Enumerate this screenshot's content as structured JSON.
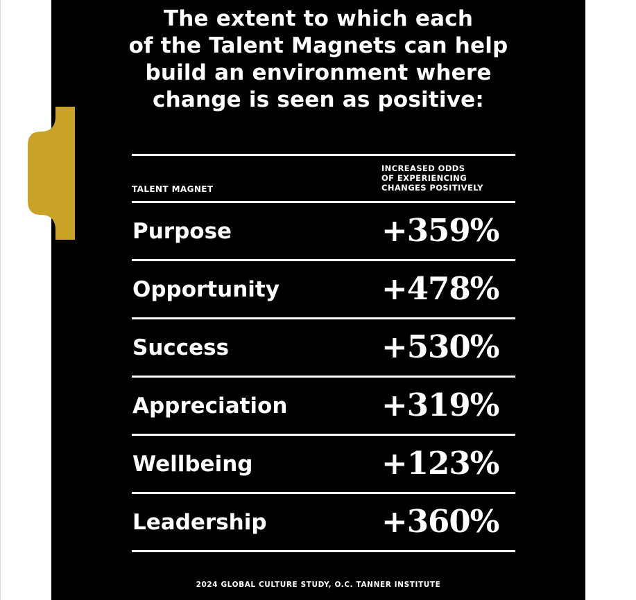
{
  "title_lines": [
    "The extent to which each",
    "of the Talent Magnets can help",
    "build an environment where",
    "change is seen as positive:"
  ],
  "table": {
    "column_headers": {
      "magnet": "TALENT MAGNET",
      "odds_lines": [
        "INCREASED ODDS",
        "OF EXPERIENCING",
        "CHANGES POSITIVELY"
      ]
    },
    "rows": [
      {
        "magnet": "Purpose",
        "odds": "+359%"
      },
      {
        "magnet": "Opportunity",
        "odds": "+478%"
      },
      {
        "magnet": "Success",
        "odds": "+530%"
      },
      {
        "magnet": "Appreciation",
        "odds": "+319%"
      },
      {
        "magnet": "Wellbeing",
        "odds": "+123%"
      },
      {
        "magnet": "Leadership",
        "odds": "+360%"
      }
    ]
  },
  "source": "2024 GLOBAL CULTURE STUDY, O.C. TANNER INSTITUTE",
  "colors": {
    "panel": "#000000",
    "text": "#ffffff",
    "accent_tab": "#c9a227"
  }
}
